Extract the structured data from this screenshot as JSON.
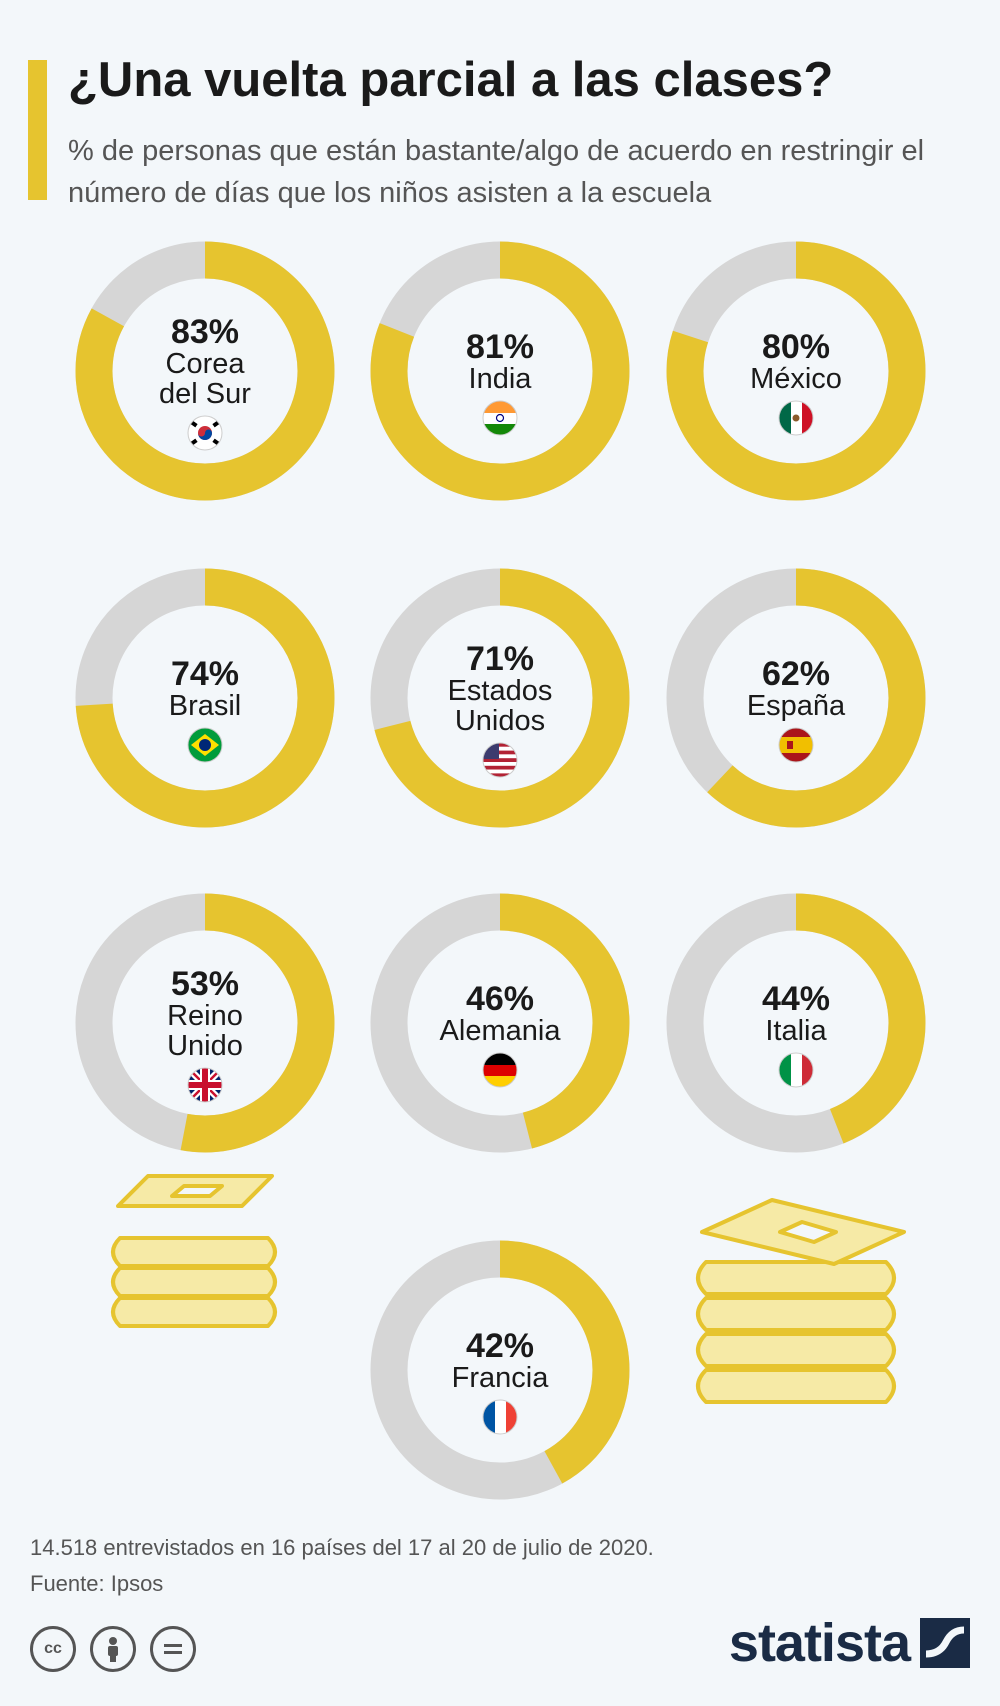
{
  "header": {
    "title": "¿Una vuelta parcial a las clases?",
    "subtitle": "% de personas que están bastante/algo de acuerdo en restringir el número de días que los niños asisten a la escuela"
  },
  "colors": {
    "accent": "#e6c42f",
    "track": "#d6d6d6",
    "text": "#1a1a1a"
  },
  "chart_data": {
    "type": "pie",
    "variant": "donut-grid",
    "title": "¿Una vuelta parcial a las clases?",
    "subtitle": "% de personas que están bastante/algo de acuerdo en restringir el número de días que los niños asisten a la escuela",
    "unit": "%",
    "items": [
      {
        "label": "Corea del Sur",
        "label_lines": [
          "Corea",
          "del Sur"
        ],
        "value": 83,
        "value_label": "83%",
        "flag": "south-korea-flag"
      },
      {
        "label": "India",
        "label_lines": [
          "India"
        ],
        "value": 81,
        "value_label": "81%",
        "flag": "india-flag"
      },
      {
        "label": "México",
        "label_lines": [
          "México"
        ],
        "value": 80,
        "value_label": "80%",
        "flag": "mexico-flag"
      },
      {
        "label": "Brasil",
        "label_lines": [
          "Brasil"
        ],
        "value": 74,
        "value_label": "74%",
        "flag": "brazil-flag"
      },
      {
        "label": "Estados Unidos",
        "label_lines": [
          "Estados",
          "Unidos"
        ],
        "value": 71,
        "value_label": "71%",
        "flag": "usa-flag"
      },
      {
        "label": "España",
        "label_lines": [
          "España"
        ],
        "value": 62,
        "value_label": "62%",
        "flag": "spain-flag"
      },
      {
        "label": "Reino Unido",
        "label_lines": [
          "Reino",
          "Unido"
        ],
        "value": 53,
        "value_label": "53%",
        "flag": "uk-flag"
      },
      {
        "label": "Alemania",
        "label_lines": [
          "Alemania"
        ],
        "value": 46,
        "value_label": "46%",
        "flag": "germany-flag"
      },
      {
        "label": "Italia",
        "label_lines": [
          "Italia"
        ],
        "value": 44,
        "value_label": "44%",
        "flag": "italy-flag"
      },
      {
        "label": "Francia",
        "label_lines": [
          "Francia"
        ],
        "value": 42,
        "value_label": "42%",
        "flag": "france-flag"
      }
    ]
  },
  "footer": {
    "note": "14.518 entrevistados en 16 países del 17 al 20 de julio de 2020.",
    "source": "Fuente: Ipsos",
    "license_icons": [
      "cc-icon",
      "attribution-icon",
      "no-derivatives-icon"
    ],
    "brand": "statista"
  }
}
